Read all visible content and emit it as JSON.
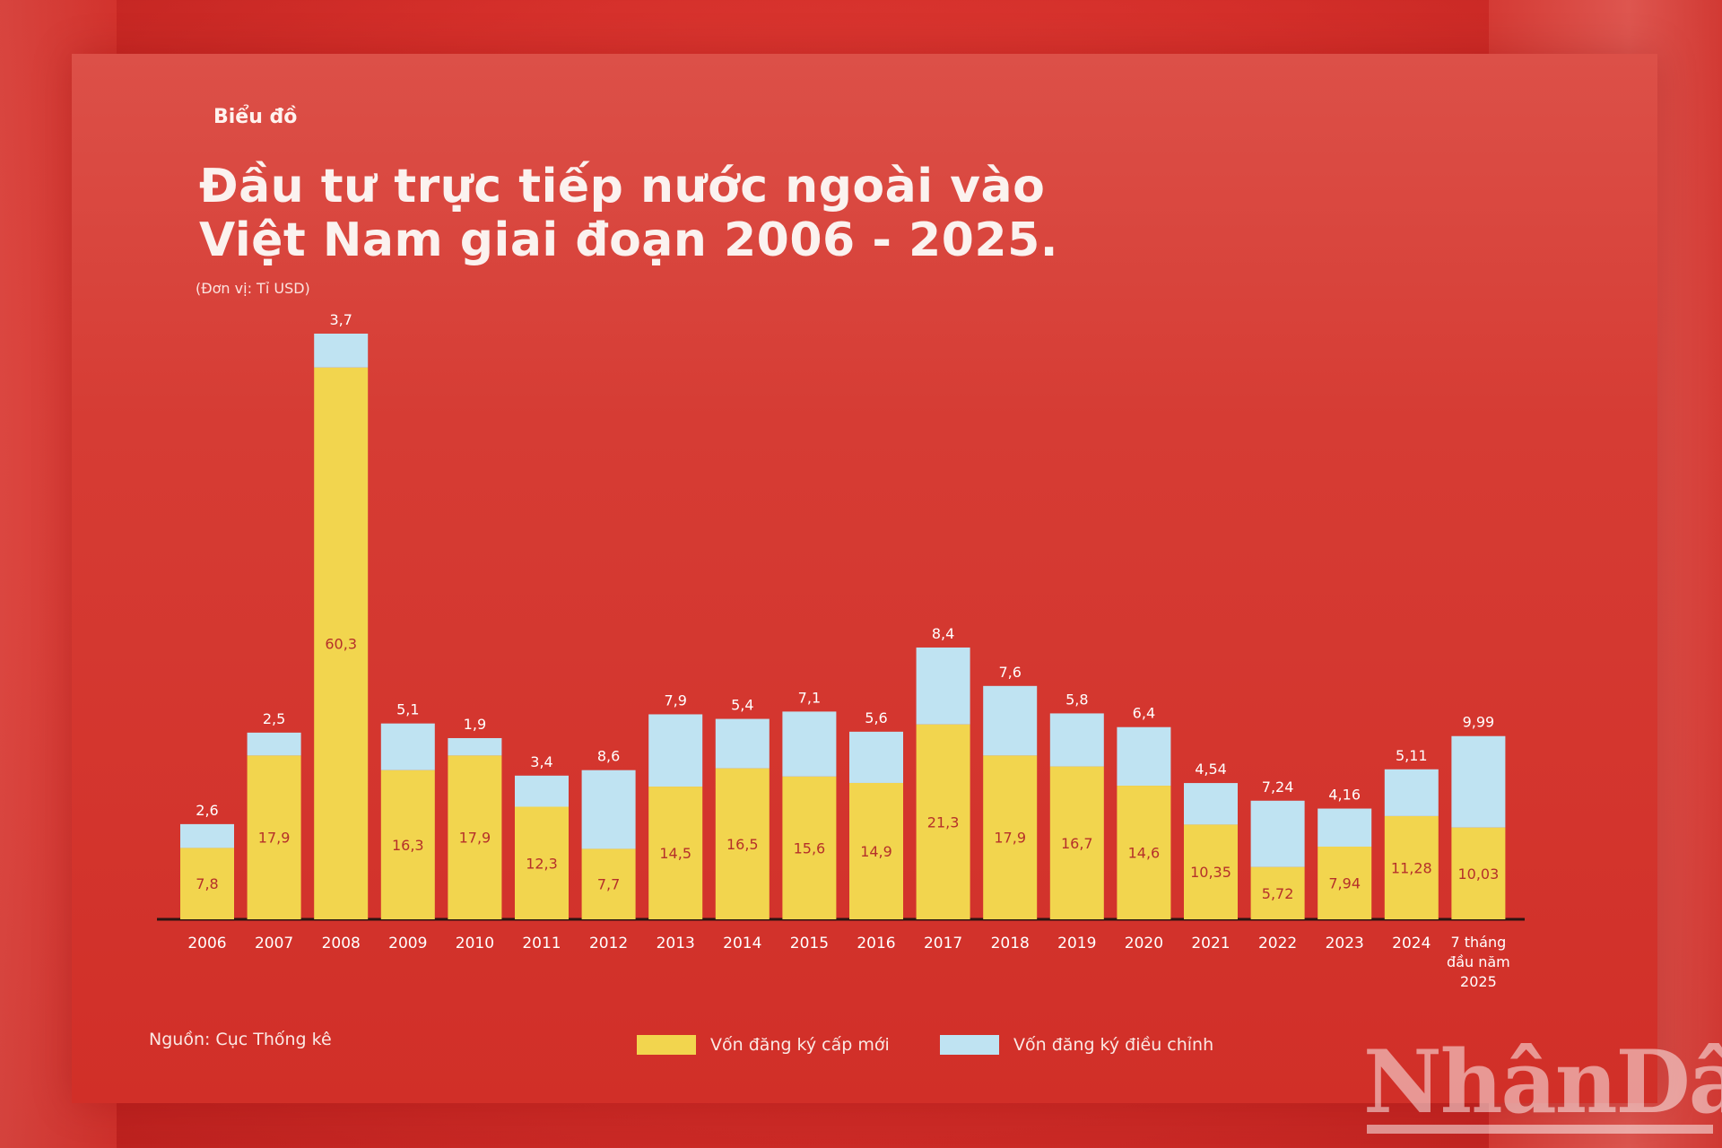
{
  "kicker": "Biểu đồ",
  "title_line1": "Đầu tư trực tiếp nước ngoài vào",
  "title_line2": "Việt Nam giai đoạn 2006 - 2025.",
  "unit": "(Đơn vị: Tỉ USD)",
  "source": "Nguồn: Cục Thống kê",
  "watermark": "NhânDân",
  "colors": {
    "new_capital": "#f2d54e",
    "adjusted_capital": "#bfe3f2",
    "bar_label_new": "#b5302a",
    "top_label": "#ffffff",
    "axis_text": "#ffffff"
  },
  "chart_data": {
    "type": "bar",
    "stacked": true,
    "categories": [
      "2006",
      "2007",
      "2008",
      "2009",
      "2010",
      "2011",
      "2012",
      "2013",
      "2014",
      "2015",
      "2016",
      "2017",
      "2018",
      "2019",
      "2020",
      "2021",
      "2022",
      "2023",
      "2024",
      "7 tháng đầu năm 2025"
    ],
    "series": [
      {
        "name": "Vốn đăng ký cấp mới",
        "values": [
          7.8,
          17.9,
          60.3,
          16.3,
          17.9,
          12.3,
          7.7,
          14.5,
          16.5,
          15.6,
          14.9,
          21.3,
          17.9,
          16.7,
          14.6,
          10.35,
          5.72,
          7.94,
          11.28,
          10.03
        ],
        "labels": [
          "7,8",
          "17,9",
          "60,3",
          "16,3",
          "17,9",
          "12,3",
          "7,7",
          "14,5",
          "16,5",
          "15,6",
          "14,9",
          "21,3",
          "17,9",
          "16,7",
          "14,6",
          "10,35",
          "5,72",
          "7,94",
          "11,28",
          "10,03"
        ]
      },
      {
        "name": "Vốn đăng ký điều chỉnh",
        "values": [
          2.6,
          2.5,
          3.7,
          5.1,
          1.9,
          3.4,
          8.6,
          7.9,
          5.4,
          7.1,
          5.6,
          8.4,
          7.6,
          5.8,
          6.4,
          4.54,
          7.24,
          4.16,
          5.11,
          9.99
        ],
        "labels": [
          "2,6",
          "2,5",
          "3,7",
          "5,1",
          "1,9",
          "3,4",
          "8,6",
          "7,9",
          "5,4",
          "7,1",
          "5,6",
          "8,4",
          "7,6",
          "5,8",
          "6,4",
          "4,54",
          "7,24",
          "4,16",
          "5,11",
          "9,99"
        ]
      }
    ],
    "legend_position": "bottom",
    "grid": false
  }
}
